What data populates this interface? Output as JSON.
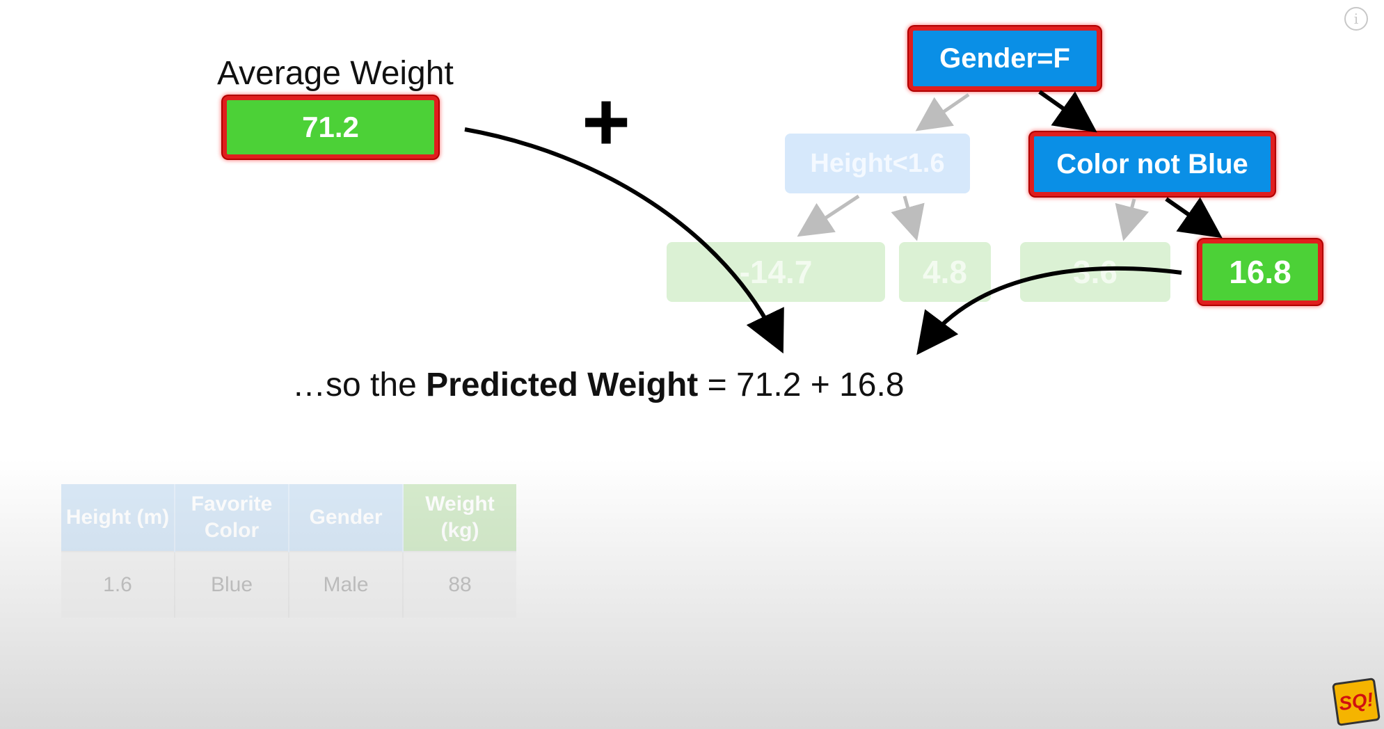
{
  "average": {
    "label": "Average Weight",
    "value": "71.2"
  },
  "plus": "+",
  "tree": {
    "root": "Gender=F",
    "left_split": "Height<1.6",
    "right_split": "Color not Blue",
    "leaves": [
      "-14.7",
      "4.8",
      "3.6",
      "16.8"
    ]
  },
  "sentence": {
    "prefix": "…so the ",
    "bold": "Predicted Weight",
    "suffix": " = 71.2 + 16.8"
  },
  "table": {
    "headers": [
      "Height (m)",
      "Favorite Color",
      "Gender",
      "Weight (kg)"
    ],
    "row": [
      "1.6",
      "Blue",
      "Male",
      "88"
    ]
  },
  "info_icon": "i",
  "logo": "SQ!",
  "colors": {
    "leaf_green": "#4cd137",
    "node_blue": "#0a8fe6",
    "highlight_red": "#e01e1e"
  }
}
